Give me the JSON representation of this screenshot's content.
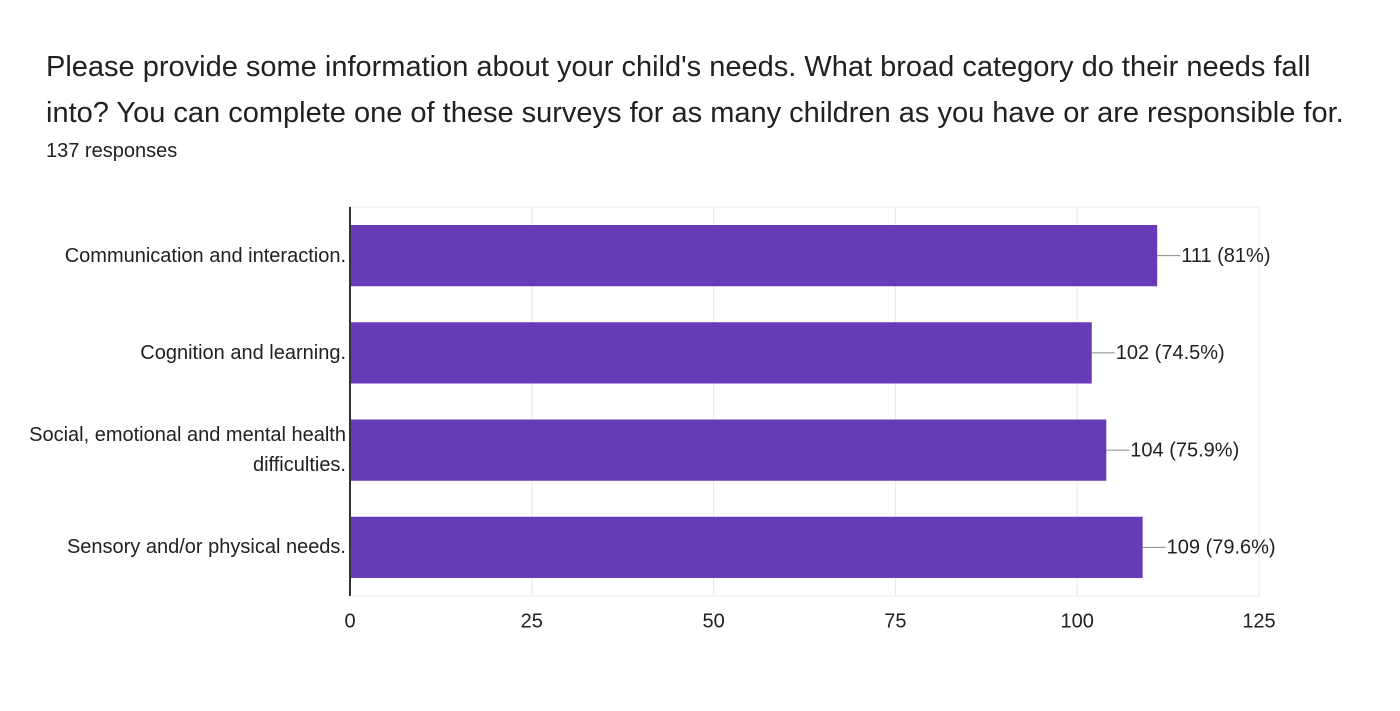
{
  "chart_data": {
    "type": "bar",
    "orientation": "horizontal",
    "title": "Please provide some information about your child's needs. What broad category do their needs fall into? You can complete one of these surveys for as many children as you have or are responsible for.",
    "subtitle": "137 responses",
    "categories": [
      "Communication and interaction.",
      "Cognition and learning.",
      "Social, emotional and mental health difficulties.",
      "Sensory and/or physical needs."
    ],
    "values": [
      111,
      102,
      104,
      109
    ],
    "value_labels": [
      "111 (81%)",
      "102 (74.5%)",
      "104 (75.9%)",
      "109 (79.6%)"
    ],
    "color": "#673ab7",
    "xlim": [
      0,
      125
    ],
    "xticks": [
      0,
      25,
      50,
      75,
      100,
      125
    ],
    "grid": true
  }
}
